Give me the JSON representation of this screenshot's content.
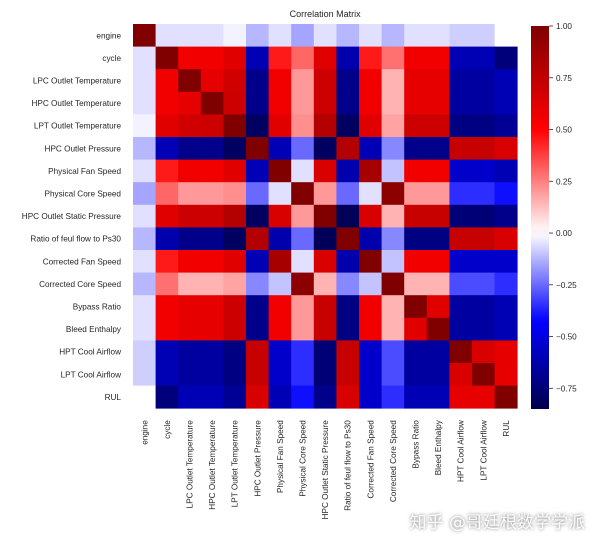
{
  "chart_data": {
    "type": "heatmap",
    "title": "Correlation Matrix",
    "labels": [
      "engine",
      "cycle",
      "LPC Outlet Temperature",
      "HPC Outlet Temperature",
      "LPT Outlet Temperature",
      "HPC Outlet Pressure",
      "Physical Fan Speed",
      "Physical Core Speed",
      "HPC Outlet Static Pressure",
      "Ratio of feul flow to Ps30",
      "Corrected Fan Speed",
      "Corrected Core Speed",
      "Bypass Ratio",
      "Bleed Enthalpy",
      "HPT Cool Airflow",
      "LPT Cool Airflow",
      "RUL"
    ],
    "matrix": [
      [
        1.0,
        -0.05,
        -0.05,
        -0.05,
        -0.02,
        -0.12,
        -0.05,
        -0.15,
        -0.05,
        -0.12,
        -0.05,
        -0.12,
        -0.05,
        -0.05,
        -0.08,
        -0.08,
        null
      ],
      [
        -0.05,
        1.0,
        0.55,
        0.55,
        0.62,
        -0.6,
        0.45,
        0.3,
        0.62,
        -0.62,
        0.45,
        0.28,
        0.55,
        0.55,
        -0.6,
        -0.6,
        -0.74
      ],
      [
        -0.05,
        0.55,
        1.0,
        0.6,
        0.68,
        -0.7,
        0.55,
        0.2,
        0.7,
        -0.7,
        0.55,
        0.15,
        0.6,
        0.6,
        -0.65,
        -0.65,
        -0.6
      ],
      [
        -0.05,
        0.55,
        0.6,
        1.0,
        0.7,
        -0.7,
        0.55,
        0.2,
        0.7,
        -0.7,
        0.55,
        0.15,
        0.6,
        0.6,
        -0.65,
        -0.65,
        -0.6
      ],
      [
        -0.02,
        0.62,
        0.68,
        0.7,
        1.0,
        -0.8,
        0.62,
        0.22,
        0.8,
        -0.8,
        0.62,
        0.18,
        0.7,
        0.7,
        -0.72,
        -0.72,
        -0.68
      ],
      [
        -0.12,
        -0.6,
        -0.7,
        -0.7,
        -0.8,
        1.0,
        -0.6,
        -0.25,
        -0.8,
        0.8,
        -0.6,
        -0.2,
        -0.7,
        -0.7,
        0.72,
        0.72,
        0.65
      ],
      [
        -0.05,
        0.45,
        0.55,
        0.55,
        0.62,
        -0.6,
        1.0,
        -0.05,
        0.65,
        -0.62,
        0.85,
        -0.1,
        0.55,
        0.55,
        -0.55,
        -0.55,
        -0.6
      ],
      [
        -0.15,
        0.3,
        0.2,
        0.2,
        0.22,
        -0.25,
        -0.05,
        1.0,
        0.2,
        -0.25,
        -0.05,
        0.95,
        0.2,
        0.2,
        -0.35,
        -0.35,
        -0.4
      ],
      [
        -0.05,
        0.62,
        0.7,
        0.7,
        0.8,
        -0.8,
        0.65,
        0.2,
        1.0,
        -0.82,
        0.65,
        0.15,
        0.72,
        0.72,
        -0.75,
        -0.75,
        -0.7
      ],
      [
        -0.12,
        -0.62,
        -0.7,
        -0.7,
        -0.8,
        0.8,
        -0.62,
        -0.25,
        -0.82,
        1.0,
        -0.62,
        -0.2,
        -0.72,
        -0.72,
        0.72,
        0.72,
        0.65
      ],
      [
        -0.05,
        0.45,
        0.55,
        0.55,
        0.62,
        -0.6,
        0.85,
        -0.05,
        0.65,
        -0.62,
        1.0,
        -0.1,
        0.55,
        0.55,
        -0.55,
        -0.55,
        -0.55
      ],
      [
        -0.12,
        0.28,
        0.15,
        0.15,
        0.18,
        -0.2,
        -0.1,
        0.95,
        0.15,
        -0.2,
        -0.1,
        1.0,
        0.15,
        0.15,
        -0.3,
        -0.3,
        -0.35
      ],
      [
        -0.05,
        0.55,
        0.6,
        0.6,
        0.7,
        -0.7,
        0.55,
        0.2,
        0.72,
        -0.72,
        0.55,
        0.15,
        1.0,
        0.62,
        -0.65,
        -0.65,
        -0.6
      ],
      [
        -0.05,
        0.55,
        0.6,
        0.6,
        0.7,
        -0.7,
        0.55,
        0.2,
        0.72,
        -0.72,
        0.55,
        0.15,
        0.62,
        1.0,
        -0.65,
        -0.65,
        -0.6
      ],
      [
        -0.08,
        -0.6,
        -0.65,
        -0.65,
        -0.72,
        0.72,
        -0.55,
        -0.35,
        -0.75,
        0.72,
        -0.55,
        -0.3,
        -0.65,
        -0.65,
        1.0,
        0.65,
        0.6
      ],
      [
        -0.08,
        -0.6,
        -0.65,
        -0.65,
        -0.72,
        0.72,
        -0.55,
        -0.35,
        -0.75,
        0.72,
        -0.55,
        -0.3,
        -0.65,
        -0.65,
        0.65,
        1.0,
        0.6
      ],
      [
        null,
        -0.74,
        -0.6,
        -0.6,
        -0.68,
        0.65,
        -0.6,
        -0.4,
        -0.7,
        0.65,
        -0.55,
        -0.35,
        -0.6,
        -0.6,
        0.6,
        0.6,
        1.0
      ]
    ],
    "colormap": "seismic",
    "vmin": -0.85,
    "vmax": 1.0,
    "colorbar_ticks": [
      1.0,
      0.75,
      0.5,
      0.25,
      0.0,
      -0.25,
      -0.5,
      -0.75
    ],
    "colorbar_tick_labels": [
      "1.00",
      "0.75",
      "0.50",
      "0.25",
      "0.00",
      "−0.25",
      "−0.50",
      "−0.75"
    ]
  },
  "watermark": "知乎 @哥廷根数学学派"
}
